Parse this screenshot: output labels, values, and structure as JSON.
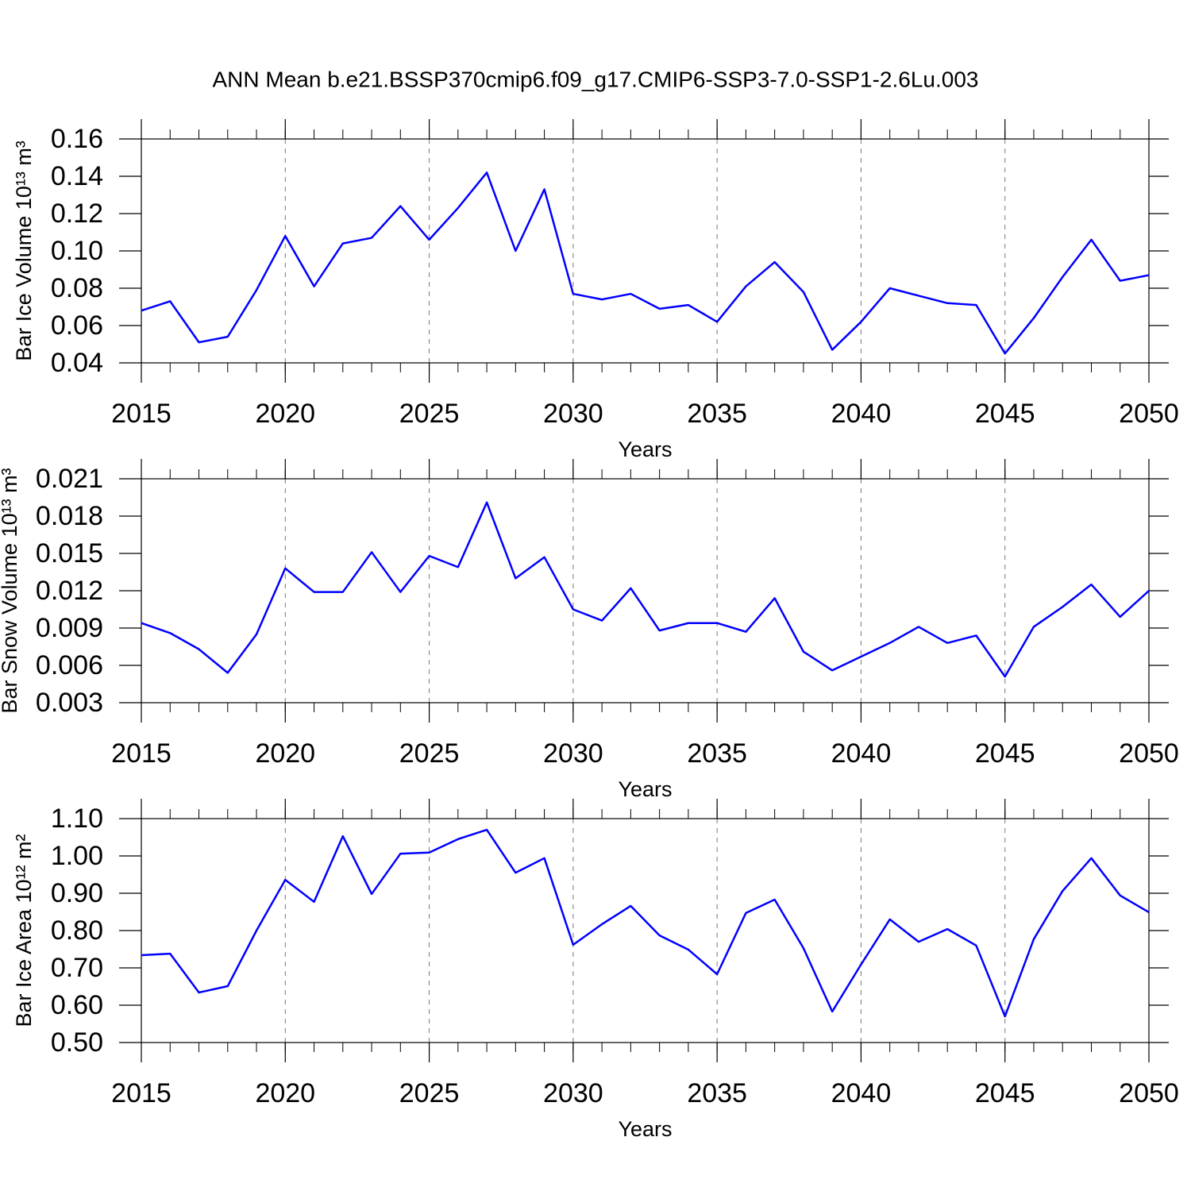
{
  "title": "ANN Mean b.e21.BSSP370cmip6.f09_g17.CMIP6-SSP3-7.0-SSP1-2.6Lu.003",
  "chart_data": [
    {
      "type": "line",
      "ylabel": "Bar Ice Volume 10¹³ m³",
      "xlabel": "Years",
      "color": "#0000ff",
      "xgrid": true,
      "x": [
        2015,
        2016,
        2017,
        2018,
        2019,
        2020,
        2021,
        2022,
        2023,
        2024,
        2025,
        2026,
        2027,
        2028,
        2029,
        2030,
        2031,
        2032,
        2033,
        2034,
        2035,
        2036,
        2037,
        2038,
        2039,
        2040,
        2041,
        2042,
        2043,
        2044,
        2045,
        2046,
        2047,
        2048,
        2049,
        2050
      ],
      "values": [
        0.068,
        0.073,
        0.051,
        0.054,
        0.079,
        0.108,
        0.081,
        0.104,
        0.107,
        0.124,
        0.106,
        0.123,
        0.142,
        0.1,
        0.133,
        0.077,
        0.074,
        0.077,
        0.069,
        0.071,
        0.062,
        0.081,
        0.094,
        0.078,
        0.047,
        0.062,
        0.08,
        0.076,
        0.072,
        0.071,
        0.045,
        0.064,
        0.086,
        0.106,
        0.084,
        0.087
      ],
      "xlim": [
        2015,
        2050
      ],
      "xticks": [
        2015,
        2020,
        2025,
        2030,
        2035,
        2040,
        2045,
        2050
      ],
      "ylim": [
        0.04,
        0.16
      ],
      "yticks": [
        0.04,
        0.06,
        0.08,
        {
          "value": 0.1,
          "label": "0.10"
        },
        0.12,
        0.14,
        0.16
      ]
    },
    {
      "type": "line",
      "ylabel": "Bar Snow Volume 10¹³ m³",
      "xlabel": "Years",
      "color": "#0000ff",
      "xgrid": true,
      "x": [
        2015,
        2016,
        2017,
        2018,
        2019,
        2020,
        2021,
        2022,
        2023,
        2024,
        2025,
        2026,
        2027,
        2028,
        2029,
        2030,
        2031,
        2032,
        2033,
        2034,
        2035,
        2036,
        2037,
        2038,
        2039,
        2040,
        2041,
        2042,
        2043,
        2044,
        2045,
        2046,
        2047,
        2048,
        2049,
        2050
      ],
      "values": [
        0.0094,
        0.0086,
        0.0073,
        0.0054,
        0.0085,
        0.0138,
        0.0119,
        0.0119,
        0.0151,
        0.0119,
        0.0148,
        0.0139,
        0.0191,
        0.013,
        0.0147,
        0.0105,
        0.0096,
        0.0122,
        0.0088,
        0.0094,
        0.0094,
        0.0087,
        0.0114,
        0.0071,
        0.0056,
        0.0067,
        0.0078,
        0.0091,
        0.0078,
        0.0084,
        0.0051,
        0.0091,
        0.0107,
        0.0125,
        0.0099,
        0.012
      ],
      "xlim": [
        2015,
        2050
      ],
      "xticks": [
        2015,
        2020,
        2025,
        2030,
        2035,
        2040,
        2045,
        2050
      ],
      "ylim": [
        0.003,
        0.021
      ],
      "yticks": [
        0.003,
        0.006,
        0.009,
        0.012,
        0.015,
        0.018,
        0.021
      ]
    },
    {
      "type": "line",
      "ylabel": "Bar Ice Area 10¹² m²",
      "xlabel": "Years",
      "color": "#0000ff",
      "xgrid": true,
      "x": [
        2015,
        2016,
        2017,
        2018,
        2019,
        2020,
        2021,
        2022,
        2023,
        2024,
        2025,
        2026,
        2027,
        2028,
        2029,
        2030,
        2031,
        2032,
        2033,
        2034,
        2035,
        2036,
        2037,
        2038,
        2039,
        2040,
        2041,
        2042,
        2043,
        2044,
        2045,
        2046,
        2047,
        2048,
        2049,
        2050
      ],
      "values": [
        0.734,
        0.738,
        0.634,
        0.651,
        0.8,
        0.936,
        0.877,
        1.053,
        0.898,
        1.006,
        1.009,
        1.045,
        1.07,
        0.955,
        0.994,
        0.762,
        0.817,
        0.866,
        0.787,
        0.749,
        0.683,
        0.847,
        0.883,
        0.753,
        0.583,
        0.709,
        0.83,
        0.77,
        0.804,
        0.76,
        0.57,
        0.777,
        0.906,
        0.994,
        0.894,
        0.849
      ],
      "xlim": [
        2015,
        2050
      ],
      "xticks": [
        2015,
        2020,
        2025,
        2030,
        2035,
        2040,
        2045,
        2050
      ],
      "ylim": [
        0.5,
        1.1
      ],
      "yticks": [
        {
          "value": 0.5,
          "label": "0.50"
        },
        {
          "value": 0.6,
          "label": "0.60"
        },
        {
          "value": 0.7,
          "label": "0.70"
        },
        {
          "value": 0.8,
          "label": "0.80"
        },
        {
          "value": 0.9,
          "label": "0.90"
        },
        {
          "value": 1.0,
          "label": "1.00"
        },
        {
          "value": 1.1,
          "label": "1.10"
        }
      ]
    }
  ]
}
